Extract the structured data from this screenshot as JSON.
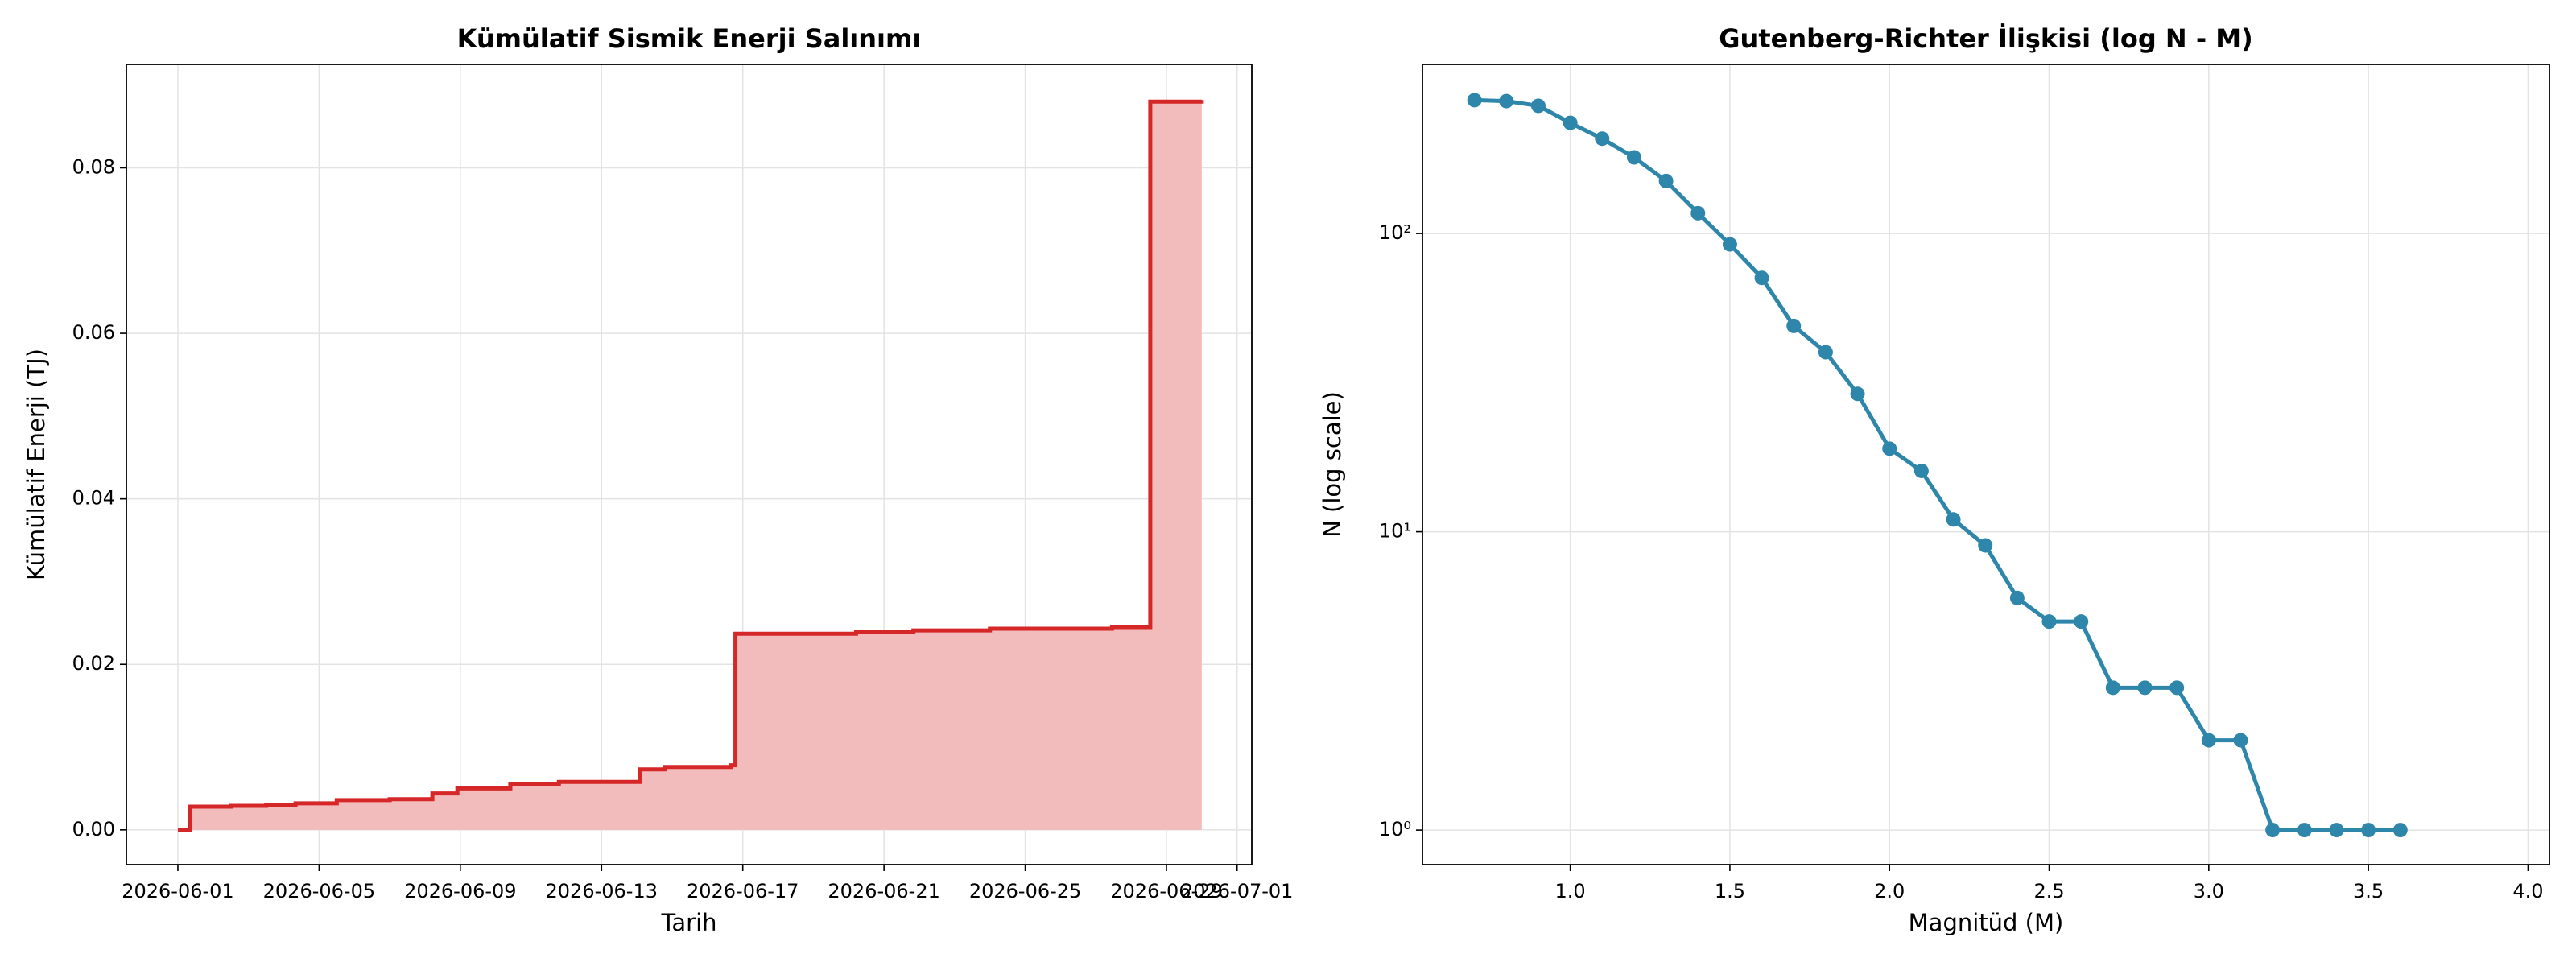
{
  "chart_data": [
    {
      "type": "area-step",
      "title": "Kümülatif Sismik Enerji Salınımı",
      "xlabel": "Tarih",
      "ylabel": "Kümülatif Enerji (TJ)",
      "x": [
        "2026-06-01T00:00",
        "2026-06-01T08:00",
        "2026-06-02T12:00",
        "2026-06-03T12:00",
        "2026-06-04T08:00",
        "2026-06-05T12:00",
        "2026-06-07T00:00",
        "2026-06-08T05:00",
        "2026-06-08T22:00",
        "2026-06-10T10:00",
        "2026-06-11T19:00",
        "2026-06-14T02:00",
        "2026-06-14T19:00",
        "2026-06-16T16:00",
        "2026-06-16T19:00",
        "2026-06-20T05:00",
        "2026-06-21T20:00",
        "2026-06-24T00:00",
        "2026-06-27T11:00",
        "2026-06-28T13:00",
        "2026-06-30T00:00"
      ],
      "values": [
        0,
        0.0028,
        0.0029,
        0.003,
        0.0032,
        0.0036,
        0.0037,
        0.0044,
        0.005,
        0.0055,
        0.0058,
        0.0073,
        0.0076,
        0.0078,
        0.0237,
        0.0239,
        0.0241,
        0.0243,
        0.0245,
        0.088,
        0.0882
      ],
      "color": "#d62728",
      "fill_color": "#f2bcbc",
      "xlim": [
        "2026-05-30T13:00",
        "2026-07-01T10:00"
      ],
      "xticks": [
        "2026-06-01",
        "2026-06-05",
        "2026-06-09",
        "2026-06-13",
        "2026-06-17",
        "2026-06-21",
        "2026-06-25",
        "2026-06-29",
        "2026-07-01"
      ],
      "ylim": [
        -0.0042,
        0.0925
      ],
      "yticks": [
        {
          "value": 0,
          "label": "0.00"
        },
        {
          "value": 0.02,
          "label": "0.02"
        },
        {
          "value": 0.04,
          "label": "0.04"
        },
        {
          "value": 0.06,
          "label": "0.06"
        },
        {
          "value": 0.08,
          "label": "0.08"
        }
      ],
      "grid": true
    },
    {
      "type": "line",
      "title": "Gutenberg-Richter İlişkisi (log N - M)",
      "xlabel": "Magnitüd (M)",
      "ylabel": "N (log scale)",
      "x": [
        0.7,
        0.8,
        0.9,
        1.0,
        1.1,
        1.2,
        1.3,
        1.4,
        1.5,
        1.6,
        1.7,
        1.8,
        1.9,
        2.0,
        2.1,
        2.2,
        2.3,
        2.4,
        2.5,
        2.6,
        2.7,
        2.8,
        2.9,
        3.0,
        3.1,
        3.2,
        3.3,
        3.4,
        3.5,
        3.6
      ],
      "values": [
        280,
        278,
        268,
        235,
        208,
        180,
        150,
        117,
        92,
        71,
        49,
        40,
        29,
        19,
        16,
        11,
        9,
        6,
        5,
        5,
        3,
        3,
        3,
        2,
        2,
        1,
        1,
        1,
        1,
        1
      ],
      "color": "#2e86ab",
      "markers": true,
      "xlim": [
        0.537,
        4.067
      ],
      "xticks": [
        {
          "value": 1,
          "label": "1.0"
        },
        {
          "value": 1.5,
          "label": "1.5"
        },
        {
          "value": 2,
          "label": "2.0"
        },
        {
          "value": 2.5,
          "label": "2.5"
        },
        {
          "value": 3,
          "label": "3.0"
        },
        {
          "value": 3.5,
          "label": "3.5"
        },
        {
          "value": 4,
          "label": "4.0"
        }
      ],
      "ylim": [
        0.766,
        369
      ],
      "ylog": true,
      "yticks": [
        {
          "value": 1,
          "label": "10⁰"
        },
        {
          "value": 10,
          "label": "10¹"
        },
        {
          "value": 100,
          "label": "10²"
        }
      ],
      "grid": true
    }
  ]
}
